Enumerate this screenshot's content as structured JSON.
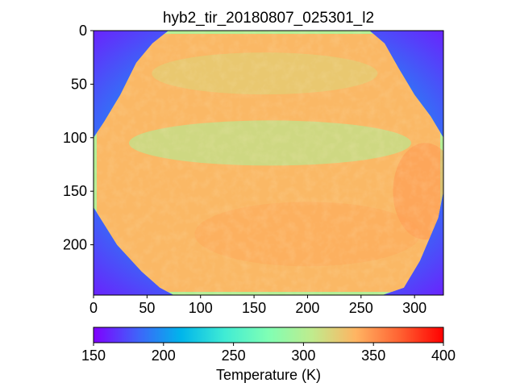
{
  "chart_data": {
    "type": "heatmap",
    "title": "hyb2_tir_20180807_025301_l2",
    "xlabel": "",
    "ylabel": "",
    "xlim": [
      0,
      327
    ],
    "ylim": [
      247,
      0
    ],
    "x_ticks": [
      0,
      50,
      100,
      150,
      200,
      250,
      300
    ],
    "y_ticks": [
      0,
      50,
      100,
      150,
      200
    ],
    "y_inverted": true,
    "grid": false,
    "colormap": "rainbow",
    "colorbar": {
      "orientation": "horizontal",
      "placement": "bottom",
      "label": "Temperature (K)",
      "range": [
        150,
        400
      ],
      "ticks": [
        150,
        200,
        250,
        300,
        350,
        400
      ]
    },
    "background_value_range_K": [
      160,
      215
    ],
    "body_value_range_K": [
      285,
      345
    ],
    "body_typical_K": 335,
    "limb_cool_band_K": 300,
    "hot_edge_right_K": 350
  },
  "colors": {
    "cmap_stops": [
      "#8000ff",
      "#4062fa",
      "#00b5eb",
      "#40ecd4",
      "#80ffb4",
      "#c0eb8d",
      "#ffb462",
      "#ff6232",
      "#ff0000"
    ]
  }
}
